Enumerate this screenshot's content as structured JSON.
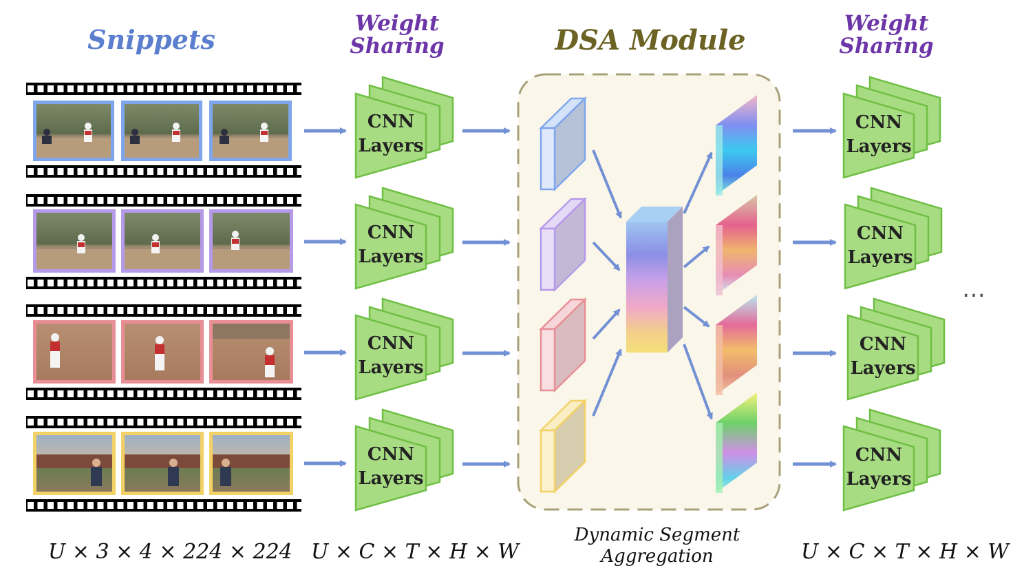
{
  "titles": {
    "snippets": "Snippets",
    "weight_sharing_left": "Weight Sharing",
    "dsa_module": "DSA Module",
    "weight_sharing_right": "Weight Sharing"
  },
  "dimensions": {
    "input": "U × 3 × 4 × 224 × 224",
    "cnn_output": "U × C × T × H × W",
    "dsa_output": "U × C × T × H × W"
  },
  "dsa_caption": {
    "line1": "Dynamic Segment",
    "line2": "Aggregation"
  },
  "cnn_block": {
    "line1": "CNN",
    "line2": "Layers"
  },
  "ellipsis": "…",
  "colors": {
    "snippet_borders": [
      "#7fa6ec",
      "#b69aea",
      "#e88f96",
      "#f2d267"
    ],
    "cnn_fill": "#a8dc82",
    "cnn_stroke": "#6fbf45",
    "arrow": "#7290d4",
    "dsa_box_fill": "#fbf6ea",
    "dsa_box_stroke": "#a9a07a"
  }
}
